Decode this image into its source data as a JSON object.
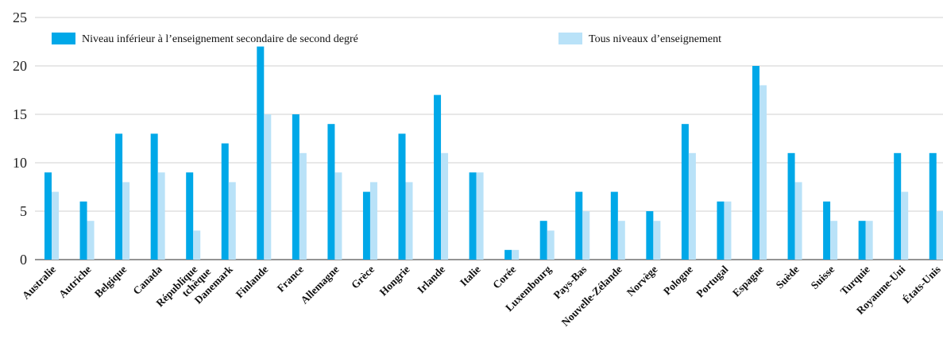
{
  "chart_data": {
    "type": "bar",
    "categories": [
      "Australie",
      "Autriche",
      "Belgique",
      "Canada",
      "République tchèque",
      "Danemark",
      "Finlande",
      "France",
      "Allemagne",
      "Grèce",
      "Hongrie",
      "Irlande",
      "Italie",
      "Corée",
      "Luxembourg",
      "Pays-Bas",
      "Nouvelle-Zélande",
      "Norvège",
      "Pologne",
      "Portugal",
      "Espagne",
      "Suède",
      "Suisse",
      "Turquie",
      "Royaume-Uni",
      "États-Unis"
    ],
    "series": [
      {
        "name": "Niveau inférieur à l’enseignement secondaire de second degré",
        "color": "#00a8e8",
        "values": [
          9,
          6,
          13,
          13,
          9,
          12,
          22,
          15,
          14,
          7,
          13,
          17,
          9,
          1,
          4,
          7,
          7,
          5,
          14,
          6,
          20,
          11,
          6,
          4,
          11,
          11
        ]
      },
      {
        "name": "Tous niveaux d’enseignement",
        "color": "#b9e2f8",
        "values": [
          7,
          4,
          8,
          9,
          3,
          8,
          15,
          11,
          9,
          8,
          8,
          11,
          9,
          1,
          3,
          5,
          4,
          4,
          11,
          6,
          18,
          8,
          4,
          4,
          7,
          5
        ]
      }
    ],
    "yticks": [
      0,
      5,
      10,
      15,
      20,
      25
    ],
    "ylim": [
      0,
      25
    ],
    "grid": true,
    "legend_position": "top"
  }
}
